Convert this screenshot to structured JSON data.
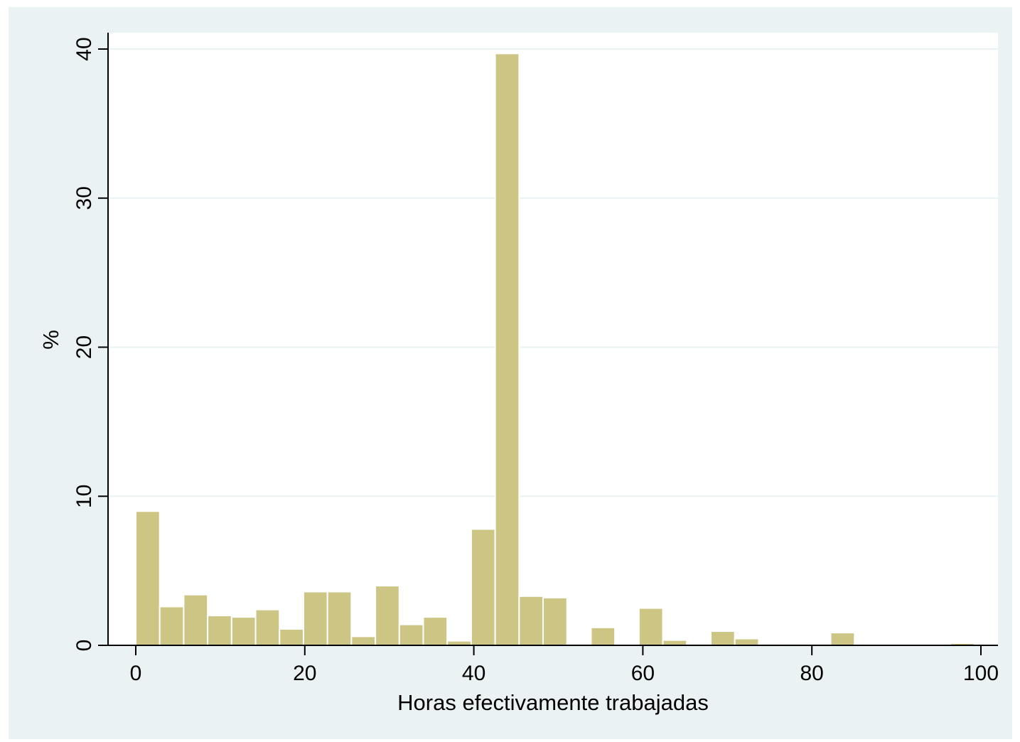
{
  "chart_data": {
    "type": "bar",
    "subtype": "histogram",
    "xlabel": "Horas efectivamente trabajadas",
    "ylabel": "%",
    "xlim": [
      -5,
      101
    ],
    "ylim": [
      0,
      41.1
    ],
    "bin_width": 2.835,
    "x_ticks": [
      0,
      20,
      40,
      60,
      80,
      100
    ],
    "y_ticks": [
      0,
      10,
      20,
      30,
      40
    ],
    "grid": true,
    "colors": {
      "plot_background": "#ffffff",
      "outer_background": "#eaf2f3",
      "bar_fill": "#cdc584",
      "bar_edge": "#ffffff",
      "gridline": "#eaf2f3"
    },
    "bins": [
      {
        "x0": 0.0,
        "value": 9.0
      },
      {
        "x0": 2.835,
        "value": 2.6
      },
      {
        "x0": 5.67,
        "value": 3.4
      },
      {
        "x0": 8.505,
        "value": 2.0
      },
      {
        "x0": 11.34,
        "value": 1.9
      },
      {
        "x0": 14.175,
        "value": 2.4
      },
      {
        "x0": 17.01,
        "value": 1.1
      },
      {
        "x0": 19.845,
        "value": 3.6
      },
      {
        "x0": 22.68,
        "value": 3.6
      },
      {
        "x0": 25.515,
        "value": 0.6
      },
      {
        "x0": 28.35,
        "value": 4.0
      },
      {
        "x0": 31.185,
        "value": 1.4
      },
      {
        "x0": 34.02,
        "value": 1.9
      },
      {
        "x0": 36.855,
        "value": 0.3
      },
      {
        "x0": 39.69,
        "value": 7.8
      },
      {
        "x0": 42.525,
        "value": 39.7
      },
      {
        "x0": 45.36,
        "value": 3.3
      },
      {
        "x0": 48.195,
        "value": 3.2
      },
      {
        "x0": 51.03,
        "value": 0.1
      },
      {
        "x0": 53.865,
        "value": 1.2
      },
      {
        "x0": 56.7,
        "value": 0.05
      },
      {
        "x0": 59.535,
        "value": 2.5
      },
      {
        "x0": 62.37,
        "value": 0.35
      },
      {
        "x0": 65.205,
        "value": 0.1
      },
      {
        "x0": 68.04,
        "value": 0.95
      },
      {
        "x0": 70.875,
        "value": 0.45
      },
      {
        "x0": 73.71,
        "value": 0.1
      },
      {
        "x0": 76.545,
        "value": 0.1
      },
      {
        "x0": 79.38,
        "value": 0.1
      },
      {
        "x0": 82.215,
        "value": 0.85
      },
      {
        "x0": 85.05,
        "value": 0.05
      },
      {
        "x0": 87.885,
        "value": 0.05
      },
      {
        "x0": 90.72,
        "value": 0.0
      },
      {
        "x0": 93.555,
        "value": 0.05
      },
      {
        "x0": 96.39,
        "value": 0.15
      }
    ]
  }
}
